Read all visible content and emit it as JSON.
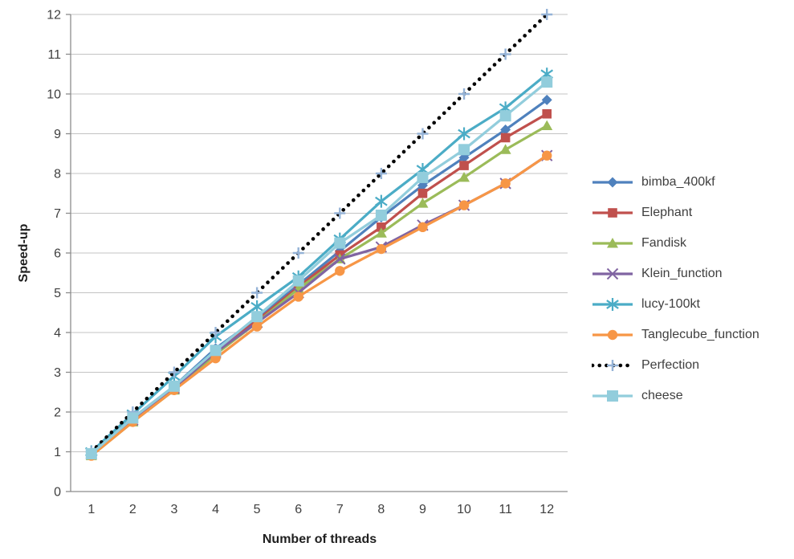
{
  "chart_data": {
    "type": "line",
    "title": "",
    "xlabel": "Number of threads",
    "ylabel": "Speed-up",
    "x": [
      1,
      2,
      3,
      4,
      5,
      6,
      7,
      8,
      9,
      10,
      11,
      12
    ],
    "ylim": [
      0,
      12
    ],
    "ytick_step": 1,
    "grid": "horizontal",
    "legend_position": "right",
    "palette": {
      "grid_color": "#c3c3c3",
      "axis_color": "#8c8c8c",
      "tick_text_color": "#3f3f3f",
      "axis_title_color": "#1f1f1f"
    },
    "series": [
      {
        "name": "bimba_400kf",
        "color": "#4F81BD",
        "marker": "diamond",
        "line_style": "solid",
        "values": [
          0.95,
          1.85,
          2.65,
          3.6,
          4.35,
          5.2,
          6.05,
          6.9,
          7.7,
          8.4,
          9.1,
          9.85
        ]
      },
      {
        "name": "Elephant",
        "color": "#C0504D",
        "marker": "square",
        "line_style": "solid",
        "values": [
          0.95,
          1.8,
          2.6,
          3.5,
          4.3,
          5.15,
          5.95,
          6.65,
          7.5,
          8.2,
          8.9,
          9.5
        ]
      },
      {
        "name": "Fandisk",
        "color": "#9BBB59",
        "marker": "triangle",
        "line_style": "solid",
        "values": [
          0.9,
          1.75,
          2.55,
          3.45,
          4.25,
          5.1,
          5.85,
          6.5,
          7.25,
          7.9,
          8.6,
          9.2
        ]
      },
      {
        "name": "Klein_function",
        "color": "#8064A2",
        "marker": "x",
        "line_style": "solid",
        "values": [
          0.95,
          1.8,
          2.6,
          3.5,
          4.25,
          5.0,
          5.85,
          6.15,
          6.7,
          7.2,
          7.75,
          8.45
        ]
      },
      {
        "name": "lucy-100kt",
        "color": "#4BACC6",
        "marker": "asterisk",
        "line_style": "solid",
        "values": [
          1.0,
          1.95,
          2.9,
          3.9,
          4.65,
          5.4,
          6.35,
          7.3,
          8.1,
          9.0,
          9.65,
          10.5
        ]
      },
      {
        "name": "Tanglecube_function",
        "color": "#F79646",
        "marker": "circle",
        "line_style": "solid",
        "values": [
          0.9,
          1.75,
          2.55,
          3.35,
          4.15,
          4.9,
          5.55,
          6.1,
          6.65,
          7.2,
          7.75,
          8.45
        ]
      },
      {
        "name": "Perfection",
        "color": "#000000",
        "marker": "plus",
        "marker_color": "#95B3D7",
        "line_style": "dotted",
        "values": [
          1,
          2,
          3,
          4,
          5,
          6,
          7,
          8,
          9,
          10,
          11,
          12
        ]
      },
      {
        "name": "cheese",
        "color": "#92CDDC",
        "marker": "square-lg",
        "line_style": "solid",
        "values": [
          0.95,
          1.85,
          2.65,
          3.55,
          4.4,
          5.3,
          6.25,
          6.95,
          7.9,
          8.6,
          9.45,
          10.3
        ]
      }
    ]
  }
}
